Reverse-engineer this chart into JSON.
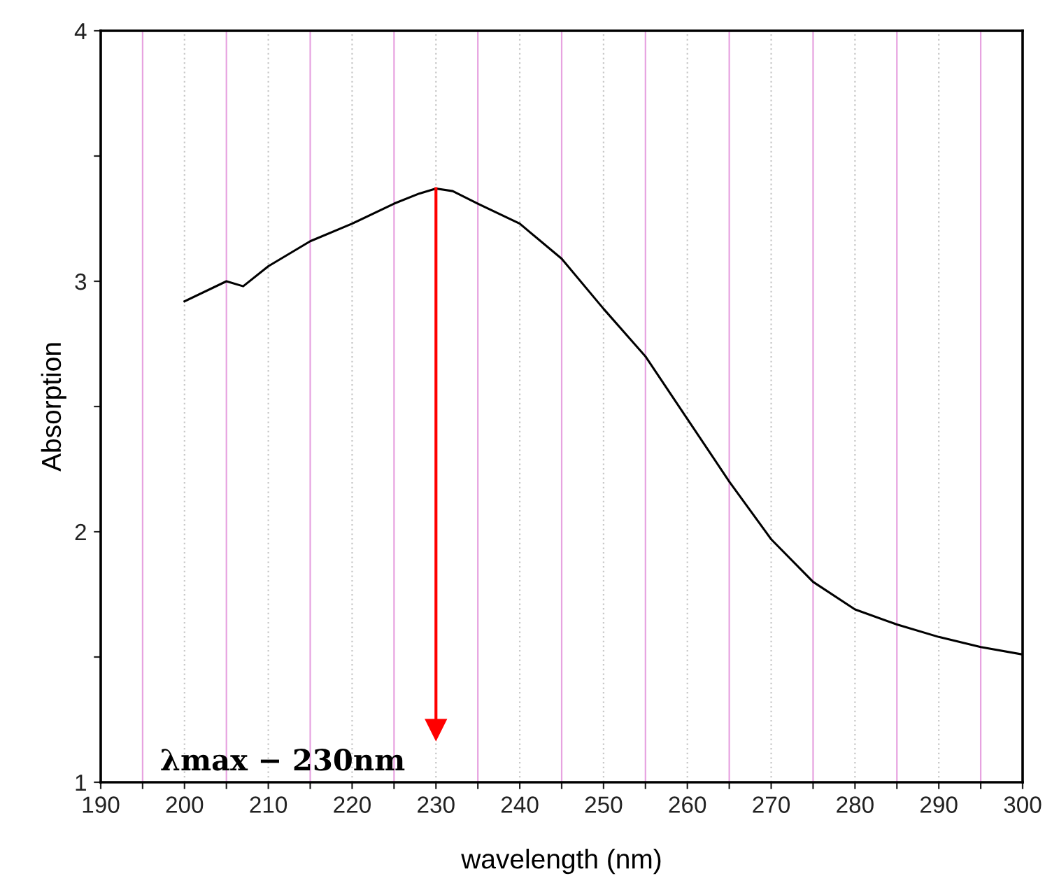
{
  "chart_data": {
    "type": "line",
    "xlabel": "wavelength (nm)",
    "ylabel": "Absorption",
    "x": [
      200,
      205,
      207,
      210,
      215,
      220,
      225,
      228,
      230,
      232,
      235,
      240,
      245,
      250,
      255,
      260,
      265,
      270,
      275,
      280,
      285,
      290,
      295,
      300
    ],
    "series": [
      {
        "color": "#000000",
        "values": [
          2.92,
          3.0,
          2.98,
          3.06,
          3.16,
          3.23,
          3.31,
          3.35,
          3.37,
          3.36,
          3.31,
          3.23,
          3.09,
          2.89,
          2.7,
          2.45,
          2.2,
          1.97,
          1.8,
          1.69,
          1.63,
          1.58,
          1.54,
          1.51
        ]
      }
    ],
    "ref_lines": [
      {
        "axis": "x",
        "value": 230,
        "label": "λmax − 230nm",
        "color": "#ff0000"
      }
    ],
    "xlim": [
      190,
      300
    ],
    "ylim": [
      1,
      4
    ],
    "xticks": [
      190,
      {
        "value": 195,
        "label": null
      },
      200,
      {
        "value": 205,
        "label": null
      },
      210,
      {
        "value": 215,
        "label": null
      },
      220,
      {
        "value": 225,
        "label": null
      },
      230,
      {
        "value": 235,
        "label": null
      },
      240,
      {
        "value": 245,
        "label": null
      },
      250,
      {
        "value": 255,
        "label": null
      },
      260,
      {
        "value": 265,
        "label": null
      },
      270,
      {
        "value": 275,
        "label": null
      },
      280,
      {
        "value": 285,
        "label": null
      },
      290,
      {
        "value": 295,
        "label": null
      },
      300
    ],
    "yticks": [
      1,
      {
        "value": 1.5,
        "label": null
      },
      2,
      {
        "value": 2.5,
        "label": null
      },
      3,
      {
        "value": 3.5,
        "label": null
      },
      4
    ],
    "grid": "x",
    "marker": "none",
    "line_style": "solid"
  }
}
